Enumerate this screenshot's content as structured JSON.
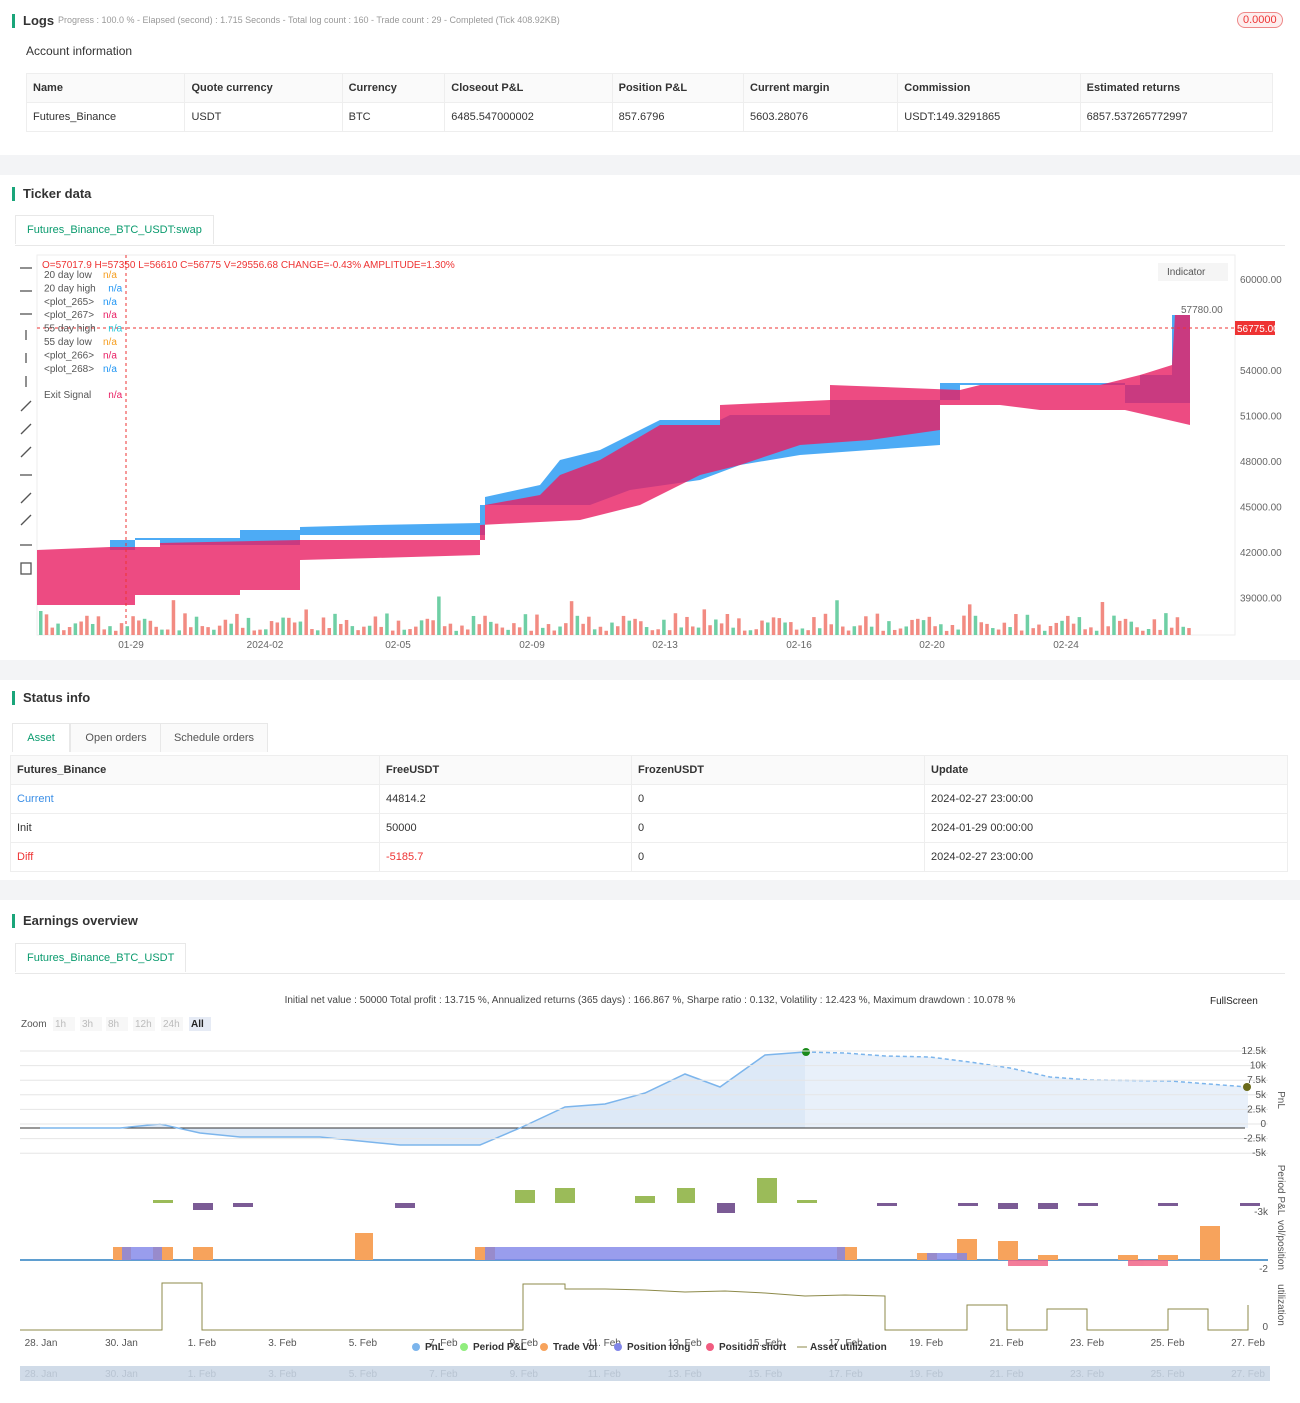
{
  "logs": {
    "title": "Logs",
    "summary": "Progress : 100.0 % - Elapsed (second) : 1.715 Seconds - Total log count : 160 - Trade count : 29 - Completed (Tick 408.92KB)",
    "badge": "0.0000",
    "account_title": "Account information",
    "table": {
      "headers": [
        "Name",
        "Quote currency",
        "Currency",
        "Closeout P&L",
        "Position P&L",
        "Current margin",
        "Commission",
        "Estimated returns"
      ],
      "rows": [
        [
          "Futures_Binance",
          "USDT",
          "BTC",
          "6485.547000002",
          "857.6796",
          "5603.28076",
          "USDT:149.3291865",
          "6857.537265772997"
        ]
      ]
    }
  },
  "ticker": {
    "title": "Ticker data",
    "tab": "Futures_Binance_BTC_USDT:swap",
    "ohlc": "O=57017.9 H=57350 L=56610 C=56775 V=29556.68 CHANGE=-0.43% AMPLITUDE=1.30%",
    "legend": [
      {
        "name": "20 day low",
        "value": "n/a",
        "color": "#f59d1e"
      },
      {
        "name": "20 day high",
        "value": "n/a",
        "color": "#2196f3"
      },
      {
        "name": "<plot_265>",
        "value": "n/a",
        "color": "#2196f3"
      },
      {
        "name": "<plot_267>",
        "value": "n/a",
        "color": "#e91e63"
      },
      {
        "name": "55 day high",
        "value": "n/a",
        "color": "#26c6da"
      },
      {
        "name": "55 day low",
        "value": "n/a",
        "color": "#f59d1e"
      },
      {
        "name": "<plot_266>",
        "value": "n/a",
        "color": "#e91e63"
      },
      {
        "name": "<plot_268>",
        "value": "n/a",
        "color": "#2196f3"
      },
      {
        "name": "Exit Signal",
        "value": "n/a",
        "color": "#e91e63"
      }
    ],
    "indicator": "Indicator",
    "yticks": [
      "60000.00",
      "54000.00",
      "51000.00",
      "48000.00",
      "45000.00",
      "42000.00",
      "39000.00"
    ],
    "price_tag": "56775.00",
    "high_tag": "57780.00",
    "xticks": [
      "01-29",
      "2024-02",
      "02-05",
      "02-09",
      "02-13",
      "02-16",
      "02-20",
      "02-24"
    ]
  },
  "status": {
    "title": "Status info",
    "tabs": [
      "Asset",
      "Open orders",
      "Schedule orders"
    ],
    "table": {
      "headers": [
        "Futures_Binance",
        "FreeUSDT",
        "FrozenUSDT",
        "Update"
      ],
      "rows": [
        [
          "Current",
          "44814.2",
          "0",
          "2024-02-27 23:00:00"
        ],
        [
          "Init",
          "50000",
          "0",
          "2024-01-29 00:00:00"
        ],
        [
          "Diff",
          "-5185.7",
          "0",
          "2024-02-27 23:00:00"
        ]
      ]
    }
  },
  "earnings": {
    "title": "Earnings overview",
    "tab": "Futures_Binance_BTC_USDT",
    "summary": "Initial net value : 50000 Total profit : 13.715 %, Annualized returns (365 days) : 166.867 %, Sharpe ratio : 0.132, Volatility : 12.423 %, Maximum drawdown : 10.078 %",
    "fullscreen": "FullScreen",
    "zoom": "Zoom",
    "zoom_buttons": [
      "1h",
      "3h",
      "8h",
      "12h",
      "24h",
      "All"
    ],
    "pnl_ticks": [
      "12.5k",
      "10k",
      "7.5k",
      "5k",
      "2.5k",
      "0",
      "-2.5k",
      "-5k"
    ],
    "period_tick": "-3k",
    "vol_tick": "-2",
    "util_tick": "0",
    "axis_titles": [
      "PnL",
      "Period P&L",
      "vol/position",
      "utilization"
    ],
    "xticks": [
      "28. Jan",
      "30. Jan",
      "1. Feb",
      "3. Feb",
      "5. Feb",
      "7. Feb",
      "9. Feb",
      "11. Feb",
      "13. Feb",
      "15. Feb",
      "17. Feb",
      "19. Feb",
      "21. Feb",
      "23. Feb",
      "25. Feb",
      "27. Feb"
    ],
    "legend": [
      {
        "name": "PnL",
        "color": "#7cb5ec"
      },
      {
        "name": "Period P&L",
        "color": "#90ed7d"
      },
      {
        "name": "Trade Vol",
        "color": "#f7a35c"
      },
      {
        "name": "Position long",
        "color": "#8085e9"
      },
      {
        "name": "Position short",
        "color": "#f15c80"
      },
      {
        "name": "Asset utilization",
        "color": "#8d8a4a"
      }
    ]
  }
}
